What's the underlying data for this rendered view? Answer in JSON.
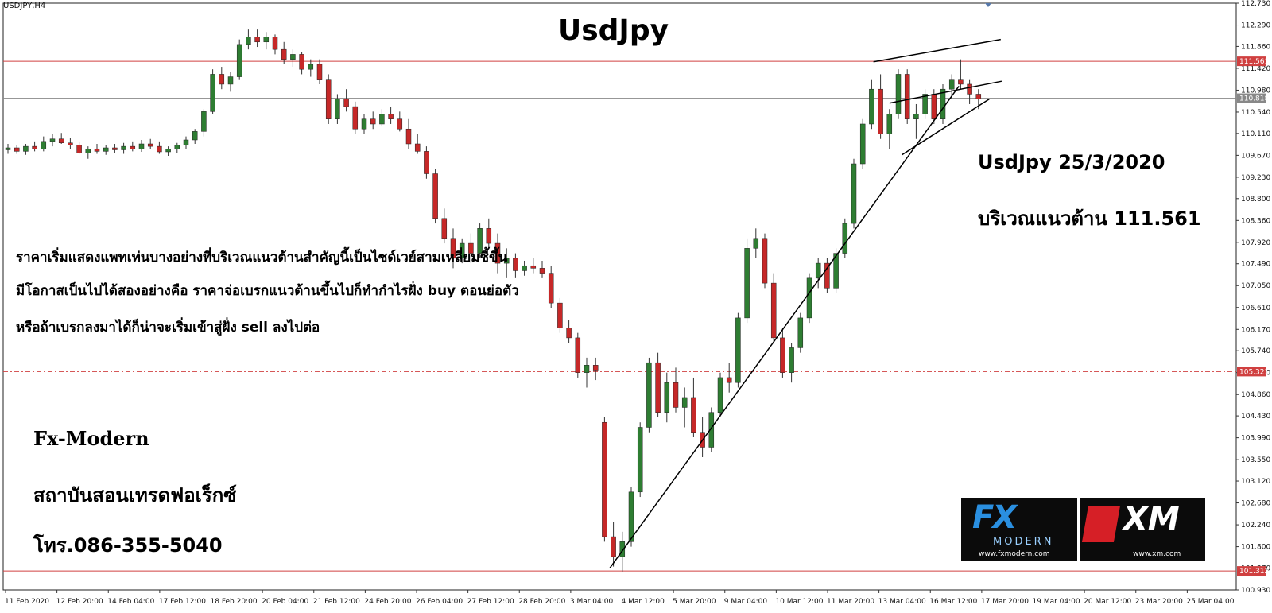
{
  "chart_data": {
    "type": "candlestick",
    "title": "UsdJpy",
    "symbol_label": "USDJPY,H4",
    "y_ticks": [
      "112.730",
      "112.290",
      "111.860",
      "111.420",
      "110.980",
      "110.540",
      "110.110",
      "109.670",
      "109.230",
      "108.800",
      "108.360",
      "107.920",
      "107.490",
      "107.050",
      "106.610",
      "106.170",
      "105.740",
      "105.300",
      "104.860",
      "104.430",
      "103.990",
      "103.550",
      "103.120",
      "102.680",
      "102.240",
      "101.800",
      "101.370",
      "100.930"
    ],
    "x_ticks": [
      "11 Feb 2020",
      "12 Feb 20:00",
      "14 Feb 04:00",
      "17 Feb 12:00",
      "18 Feb 20:00",
      "20 Feb 04:00",
      "21 Feb 12:00",
      "24 Feb 20:00",
      "26 Feb 04:00",
      "27 Feb 12:00",
      "28 Feb 20:00",
      "3 Mar 04:00",
      "4 Mar 12:00",
      "5 Mar 20:00",
      "9 Mar 04:00",
      "10 Mar 12:00",
      "11 Mar 20:00",
      "13 Mar 04:00",
      "16 Mar 12:00",
      "17 Mar 20:00",
      "19 Mar 04:00",
      "20 Mar 12:00",
      "23 Mar 20:00",
      "25 Mar 04:00"
    ],
    "ylim": [
      100.93,
      112.73
    ],
    "levels": [
      {
        "value": 111.561,
        "label": "111.561",
        "style": "solid",
        "color": "#d04040"
      },
      {
        "value": 110.818,
        "label": "110.818",
        "style": "solid",
        "color": "#888888"
      },
      {
        "value": 105.321,
        "label": "105.321",
        "style": "dashdot",
        "color": "#d04040"
      },
      {
        "value": 101.312,
        "label": "101.312",
        "style": "solid",
        "color": "#d04040"
      }
    ],
    "ohlc": [
      [
        109.78,
        109.9,
        109.7,
        109.82
      ],
      [
        109.82,
        109.88,
        109.7,
        109.75
      ],
      [
        109.75,
        109.9,
        109.68,
        109.85
      ],
      [
        109.85,
        109.95,
        109.75,
        109.8
      ],
      [
        109.8,
        110.05,
        109.75,
        109.95
      ],
      [
        109.95,
        110.1,
        109.85,
        110.0
      ],
      [
        110.0,
        110.12,
        109.9,
        109.92
      ],
      [
        109.92,
        110.02,
        109.8,
        109.88
      ],
      [
        109.88,
        109.95,
        109.7,
        109.72
      ],
      [
        109.72,
        109.85,
        109.6,
        109.8
      ],
      [
        109.8,
        109.9,
        109.7,
        109.75
      ],
      [
        109.75,
        109.88,
        109.68,
        109.82
      ],
      [
        109.82,
        109.9,
        109.72,
        109.78
      ],
      [
        109.78,
        109.92,
        109.7,
        109.85
      ],
      [
        109.85,
        109.95,
        109.75,
        109.8
      ],
      [
        109.8,
        109.98,
        109.74,
        109.9
      ],
      [
        109.9,
        110.0,
        109.8,
        109.85
      ],
      [
        109.85,
        109.95,
        109.7,
        109.74
      ],
      [
        109.74,
        109.85,
        109.66,
        109.8
      ],
      [
        109.8,
        109.92,
        109.72,
        109.88
      ],
      [
        109.88,
        110.05,
        109.8,
        109.98
      ],
      [
        109.98,
        110.2,
        109.9,
        110.15
      ],
      [
        110.15,
        110.6,
        110.05,
        110.55
      ],
      [
        110.55,
        111.4,
        110.5,
        111.3
      ],
      [
        111.3,
        111.45,
        111.0,
        111.1
      ],
      [
        111.1,
        111.35,
        110.95,
        111.25
      ],
      [
        111.25,
        112.0,
        111.2,
        111.9
      ],
      [
        111.9,
        112.2,
        111.8,
        112.05
      ],
      [
        112.05,
        112.2,
        111.85,
        111.95
      ],
      [
        111.95,
        112.15,
        111.8,
        112.05
      ],
      [
        112.05,
        112.1,
        111.7,
        111.8
      ],
      [
        111.8,
        111.95,
        111.5,
        111.6
      ],
      [
        111.6,
        111.8,
        111.45,
        111.7
      ],
      [
        111.7,
        111.75,
        111.3,
        111.4
      ],
      [
        111.4,
        111.6,
        111.25,
        111.5
      ],
      [
        111.5,
        111.6,
        111.1,
        111.2
      ],
      [
        111.2,
        111.3,
        110.3,
        110.4
      ],
      [
        110.4,
        110.9,
        110.3,
        110.8
      ],
      [
        110.8,
        111.0,
        110.55,
        110.65
      ],
      [
        110.65,
        110.75,
        110.1,
        110.2
      ],
      [
        110.2,
        110.5,
        110.1,
        110.4
      ],
      [
        110.4,
        110.55,
        110.2,
        110.3
      ],
      [
        110.3,
        110.6,
        110.25,
        110.5
      ],
      [
        110.5,
        110.65,
        110.3,
        110.4
      ],
      [
        110.4,
        110.55,
        110.15,
        110.2
      ],
      [
        110.2,
        110.4,
        109.8,
        109.9
      ],
      [
        109.9,
        110.1,
        109.7,
        109.75
      ],
      [
        109.75,
        109.85,
        109.2,
        109.3
      ],
      [
        109.3,
        109.4,
        108.3,
        108.4
      ],
      [
        108.4,
        108.6,
        107.9,
        108.0
      ],
      [
        108.0,
        108.2,
        107.4,
        107.6
      ],
      [
        107.6,
        108.0,
        107.5,
        107.9
      ],
      [
        107.9,
        108.1,
        107.5,
        107.7
      ],
      [
        107.7,
        108.3,
        107.6,
        108.2
      ],
      [
        108.2,
        108.4,
        107.8,
        107.9
      ],
      [
        107.9,
        108.1,
        107.3,
        107.5
      ],
      [
        107.5,
        107.8,
        107.2,
        107.6
      ],
      [
        107.6,
        107.7,
        107.2,
        107.35
      ],
      [
        107.35,
        107.55,
        107.25,
        107.45
      ],
      [
        107.45,
        107.6,
        107.3,
        107.4
      ],
      [
        107.4,
        107.55,
        107.2,
        107.3
      ],
      [
        107.3,
        107.45,
        106.6,
        106.7
      ],
      [
        106.7,
        106.8,
        106.1,
        106.2
      ],
      [
        106.2,
        106.35,
        105.9,
        106.0
      ],
      [
        106.0,
        106.1,
        105.2,
        105.3
      ],
      [
        105.3,
        105.6,
        105.0,
        105.45
      ],
      [
        105.45,
        105.6,
        105.15,
        105.35
      ],
      [
        104.3,
        104.4,
        101.9,
        102.0
      ],
      [
        102.0,
        102.3,
        101.4,
        101.6
      ],
      [
        101.6,
        102.1,
        101.3,
        101.9
      ],
      [
        101.9,
        103.0,
        101.8,
        102.9
      ],
      [
        102.9,
        104.3,
        102.8,
        104.2
      ],
      [
        104.2,
        105.6,
        104.1,
        105.5
      ],
      [
        105.5,
        105.7,
        104.4,
        104.5
      ],
      [
        104.5,
        105.3,
        104.3,
        105.1
      ],
      [
        105.1,
        105.4,
        104.5,
        104.6
      ],
      [
        104.6,
        105.0,
        104.2,
        104.8
      ],
      [
        104.8,
        105.2,
        104.0,
        104.1
      ],
      [
        104.1,
        104.4,
        103.6,
        103.8
      ],
      [
        103.8,
        104.6,
        103.7,
        104.5
      ],
      [
        104.5,
        105.3,
        104.4,
        105.2
      ],
      [
        105.2,
        105.5,
        104.9,
        105.1
      ],
      [
        105.1,
        106.5,
        105.0,
        106.4
      ],
      [
        106.4,
        108.0,
        106.3,
        107.8
      ],
      [
        107.8,
        108.2,
        107.6,
        108.0
      ],
      [
        108.0,
        108.1,
        107.0,
        107.1
      ],
      [
        107.1,
        107.3,
        105.9,
        106.0
      ],
      [
        106.0,
        106.2,
        105.2,
        105.3
      ],
      [
        105.3,
        105.9,
        105.1,
        105.8
      ],
      [
        105.8,
        106.5,
        105.7,
        106.4
      ],
      [
        106.4,
        107.3,
        106.3,
        107.2
      ],
      [
        107.2,
        107.6,
        107.0,
        107.5
      ],
      [
        107.5,
        107.6,
        106.9,
        107.0
      ],
      [
        107.0,
        107.8,
        106.9,
        107.7
      ],
      [
        107.7,
        108.4,
        107.6,
        108.3
      ],
      [
        108.3,
        109.6,
        108.2,
        109.5
      ],
      [
        109.5,
        110.4,
        109.4,
        110.3
      ],
      [
        110.3,
        111.2,
        110.2,
        111.0
      ],
      [
        111.0,
        111.3,
        110.0,
        110.1
      ],
      [
        110.1,
        110.6,
        109.8,
        110.5
      ],
      [
        110.5,
        111.4,
        110.4,
        111.3
      ],
      [
        111.3,
        111.4,
        110.3,
        110.4
      ],
      [
        110.4,
        110.7,
        110.0,
        110.5
      ],
      [
        110.5,
        111.0,
        110.4,
        110.9
      ],
      [
        110.9,
        111.0,
        110.3,
        110.4
      ],
      [
        110.4,
        111.1,
        110.3,
        111.0
      ],
      [
        111.0,
        111.3,
        110.8,
        111.2
      ],
      [
        111.2,
        111.6,
        111.0,
        111.1
      ],
      [
        111.1,
        111.2,
        110.7,
        110.9
      ],
      [
        110.9,
        111.0,
        110.6,
        110.8
      ]
    ],
    "trendlines": [
      {
        "x1": 67.6,
        "y1": 101.37,
        "x2": 106.8,
        "y2": 111.06
      },
      {
        "x1": 97.2,
        "y1": 111.55,
        "x2": 111.5,
        "y2": 112.0
      },
      {
        "x1": 99.0,
        "y1": 110.72,
        "x2": 111.6,
        "y2": 111.16
      },
      {
        "x1": 100.4,
        "y1": 109.68,
        "x2": 110.2,
        "y2": 110.8
      }
    ]
  },
  "annotations": {
    "date_line": "UsdJpy 25/3/2020",
    "resistance_line": "บริเวณแนวต้าน 111.561",
    "desc1": "ราคาเริ่มแสดงแพทเท่นบางอย่างที่บริเวณแนวต้านสำคัญนี้เป็นไซด์เวย์สามเหลี่ยมชี้ขึ้น",
    "desc2": "มีโอกาสเป็นไปได้สองอย่างคือ ราคาจ่อเบรกแนวต้านขึ้นไปก็ทำกำไรฝั่ง buy ตอนย่อตัว",
    "desc3": "หรือถ้าเบรกลงมาได้ก็น่าจะเริ่มเข้าสู่ฝั่ง sell ลงไปต่อ",
    "brand": "Fx-Modern",
    "institute": "สถาบันสอนเทรดฟอเร็กซ์",
    "phone": "โทร.086-355-5040"
  },
  "logo": {
    "fx_text": "FX",
    "modern_text": "MODERN",
    "fx_url": "www.fxmodern.com",
    "xm_text": "XM",
    "xm_url": "www.xm.com"
  },
  "colors": {
    "bull": "#2e7d32",
    "bear": "#c62828",
    "level_red": "#d04040",
    "trendline": "#000000"
  }
}
